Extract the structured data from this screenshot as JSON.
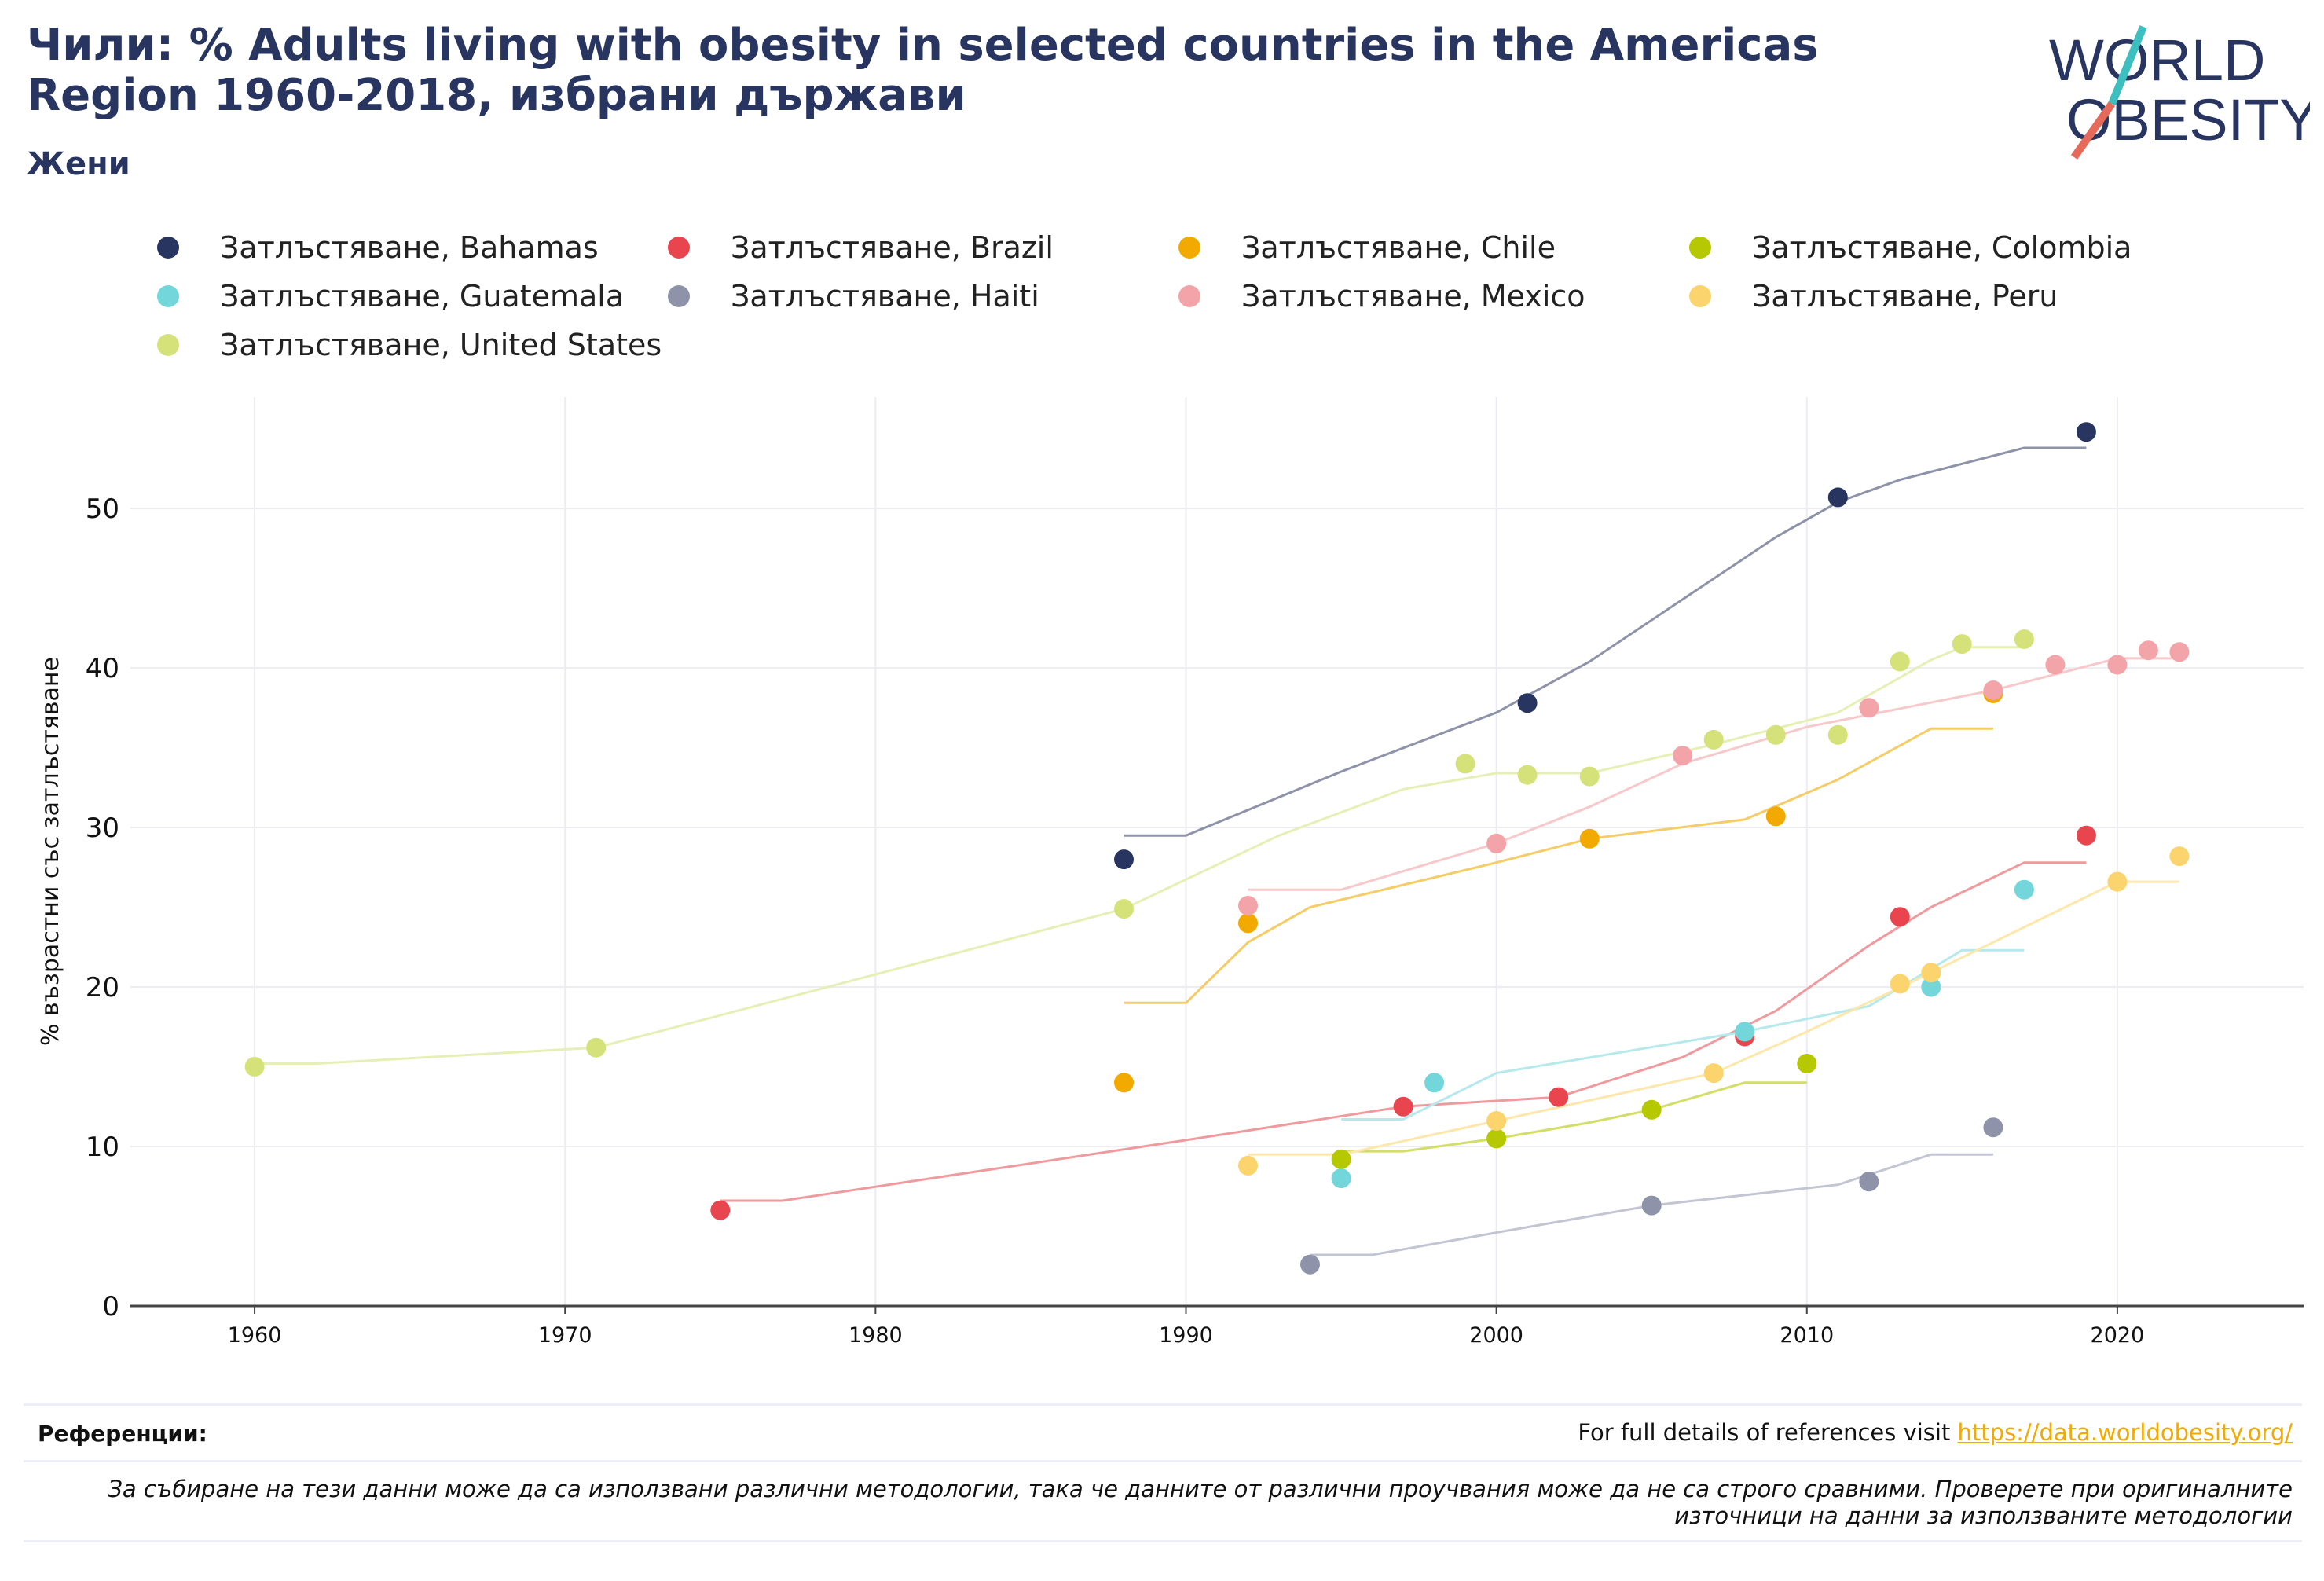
{
  "title": "Чили: % Adults living with obesity in selected countries in the Americas Region 1960-2018, избрани държави",
  "subtitle": "Жени",
  "logo": {
    "line1": "WORLD",
    "line2": "OBESITY",
    "colors": {
      "text": "#283560",
      "slash_top": "#3dbfbf",
      "slash_bottom": "#e66a5a"
    }
  },
  "footer": {
    "references_label": "Референции:",
    "references_note": "For full details of references visit ",
    "references_link": "https://data.worldobesity.org/",
    "disclaimer": "За събиране на тези данни може да са използвани различни методологии, така че данните от различни проучвания може да не са строго сравними. Проверете при оригиналните източници на данни за използваните методологии"
  },
  "chart_data": {
    "type": "scatter",
    "ylabel": "% възрастни със затлъстяване",
    "xlabel": "",
    "xlim": [
      1956,
      2026
    ],
    "ylim": [
      0,
      57
    ],
    "xticks": [
      1960,
      1970,
      1980,
      1990,
      2000,
      2010,
      2020
    ],
    "yticks": [
      0,
      10,
      20,
      30,
      40,
      50
    ],
    "grid": true,
    "legend_position": "top",
    "series": [
      {
        "name": "Затлъстяване, Bahamas",
        "color": "#283560",
        "trend_color": "#8e93aa",
        "points": [
          [
            1988,
            28.0
          ],
          [
            2001,
            37.8
          ],
          [
            2011,
            50.7
          ],
          [
            2019,
            54.8
          ]
        ],
        "trend": [
          [
            1988,
            29.5
          ],
          [
            1990,
            29.5
          ],
          [
            1995,
            33.5
          ],
          [
            2000,
            37.2
          ],
          [
            2003,
            40.4
          ],
          [
            2006,
            44.3
          ],
          [
            2009,
            48.2
          ],
          [
            2011,
            50.4
          ],
          [
            2013,
            51.8
          ],
          [
            2017,
            53.8
          ],
          [
            2019,
            53.8
          ]
        ]
      },
      {
        "name": "Затлъстяване, Brazil",
        "color": "#e8454f",
        "trend_color": "#f09a9e",
        "points": [
          [
            1975,
            6.0
          ],
          [
            1997,
            12.5
          ],
          [
            2002,
            13.1
          ],
          [
            2008,
            16.9
          ],
          [
            2013,
            24.4
          ],
          [
            2019,
            29.5
          ]
        ],
        "trend": [
          [
            1975,
            6.6
          ],
          [
            1977,
            6.6
          ],
          [
            1990,
            10.4
          ],
          [
            1997,
            12.5
          ],
          [
            2002,
            13.1
          ],
          [
            2006,
            15.6
          ],
          [
            2009,
            18.5
          ],
          [
            2012,
            22.6
          ],
          [
            2014,
            25.0
          ],
          [
            2017,
            27.8
          ],
          [
            2019,
            27.8
          ]
        ]
      },
      {
        "name": "Затлъстяване, Chile",
        "color": "#f2a900",
        "trend_color": "#f5cc66",
        "points": [
          [
            1988,
            14.0
          ],
          [
            1992,
            24.0
          ],
          [
            2003,
            29.3
          ],
          [
            2009,
            30.7
          ],
          [
            2016,
            38.4
          ]
        ],
        "trend": [
          [
            1988,
            19.0
          ],
          [
            1990,
            19.0
          ],
          [
            1992,
            22.8
          ],
          [
            1994,
            25.0
          ],
          [
            2000,
            27.8
          ],
          [
            2003,
            29.3
          ],
          [
            2008,
            30.5
          ],
          [
            2011,
            33.0
          ],
          [
            2014,
            36.2
          ],
          [
            2016,
            36.2
          ]
        ]
      },
      {
        "name": "Затлъстяване, Colombia",
        "color": "#b5c800",
        "trend_color": "#d2de66",
        "points": [
          [
            1995,
            9.2
          ],
          [
            2000,
            10.5
          ],
          [
            2005,
            12.3
          ],
          [
            2010,
            15.2
          ]
        ],
        "trend": [
          [
            1995,
            9.7
          ],
          [
            1997,
            9.7
          ],
          [
            2000,
            10.5
          ],
          [
            2003,
            11.5
          ],
          [
            2005,
            12.3
          ],
          [
            2008,
            14.0
          ],
          [
            2010,
            14.0
          ]
        ]
      },
      {
        "name": "Затлъстяване, Guatemala",
        "color": "#72d6da",
        "trend_color": "#b6e9eb",
        "points": [
          [
            1995,
            8.0
          ],
          [
            1998,
            14.0
          ],
          [
            2008,
            17.2
          ],
          [
            2014,
            20.0
          ],
          [
            2017,
            26.1
          ]
        ],
        "trend": [
          [
            1995,
            11.7
          ],
          [
            1997,
            11.7
          ],
          [
            2000,
            14.6
          ],
          [
            2008,
            17.2
          ],
          [
            2012,
            18.8
          ],
          [
            2015,
            22.3
          ],
          [
            2017,
            22.3
          ]
        ]
      },
      {
        "name": "Затлъстяване, Haiti",
        "color": "#8e93aa",
        "trend_color": "#c2c5d3",
        "points": [
          [
            1994,
            2.6
          ],
          [
            2005,
            6.3
          ],
          [
            2012,
            7.8
          ],
          [
            2016,
            11.2
          ]
        ],
        "trend": [
          [
            1994,
            3.2
          ],
          [
            1996,
            3.2
          ],
          [
            2000,
            4.6
          ],
          [
            2005,
            6.3
          ],
          [
            2011,
            7.6
          ],
          [
            2014,
            9.5
          ],
          [
            2016,
            9.5
          ]
        ]
      },
      {
        "name": "Затлъстяване, Mexico",
        "color": "#f3a4a8",
        "trend_color": "#f8c9cb",
        "points": [
          [
            1992,
            25.1
          ],
          [
            2000,
            29.0
          ],
          [
            2006,
            34.5
          ],
          [
            2012,
            37.5
          ],
          [
            2016,
            38.6
          ],
          [
            2018,
            40.2
          ],
          [
            2020,
            40.2
          ],
          [
            2021,
            41.1
          ],
          [
            2022,
            41.0
          ]
        ],
        "trend": [
          [
            1992,
            26.1
          ],
          [
            1995,
            26.1
          ],
          [
            2000,
            29.0
          ],
          [
            2003,
            31.3
          ],
          [
            2006,
            34.0
          ],
          [
            2010,
            36.3
          ],
          [
            2016,
            38.6
          ],
          [
            2020,
            40.6
          ],
          [
            2022,
            40.6
          ]
        ]
      },
      {
        "name": "Затлъстяване, Peru",
        "color": "#fbd46d",
        "trend_color": "#fde7aa",
        "points": [
          [
            1992,
            8.8
          ],
          [
            2000,
            11.6
          ],
          [
            2007,
            14.6
          ],
          [
            2013,
            20.2
          ],
          [
            2014,
            20.9
          ],
          [
            2020,
            26.6
          ],
          [
            2022,
            28.2
          ]
        ],
        "trend": [
          [
            1992,
            9.5
          ],
          [
            1995,
            9.5
          ],
          [
            2000,
            11.6
          ],
          [
            2007,
            14.6
          ],
          [
            2010,
            17.2
          ],
          [
            2014,
            20.9
          ],
          [
            2020,
            26.6
          ],
          [
            2022,
            26.6
          ]
        ]
      },
      {
        "name": "Затлъстяване, United States",
        "color": "#d5e27a",
        "trend_color": "#e6efb5",
        "points": [
          [
            1960,
            15.0
          ],
          [
            1971,
            16.2
          ],
          [
            1988,
            24.9
          ],
          [
            1999,
            34.0
          ],
          [
            2001,
            33.3
          ],
          [
            2003,
            33.2
          ],
          [
            2007,
            35.5
          ],
          [
            2009,
            35.8
          ],
          [
            2011,
            35.8
          ],
          [
            2013,
            40.4
          ],
          [
            2015,
            41.5
          ],
          [
            2017,
            41.8
          ]
        ],
        "trend": [
          [
            1960,
            15.2
          ],
          [
            1962,
            15.2
          ],
          [
            1971,
            16.2
          ],
          [
            1973,
            17.2
          ],
          [
            1988,
            24.9
          ],
          [
            1993,
            29.5
          ],
          [
            1997,
            32.4
          ],
          [
            2000,
            33.4
          ],
          [
            2003,
            33.4
          ],
          [
            2007,
            35.2
          ],
          [
            2011,
            37.2
          ],
          [
            2014,
            40.5
          ],
          [
            2015,
            41.3
          ],
          [
            2017,
            41.3
          ]
        ]
      }
    ]
  }
}
